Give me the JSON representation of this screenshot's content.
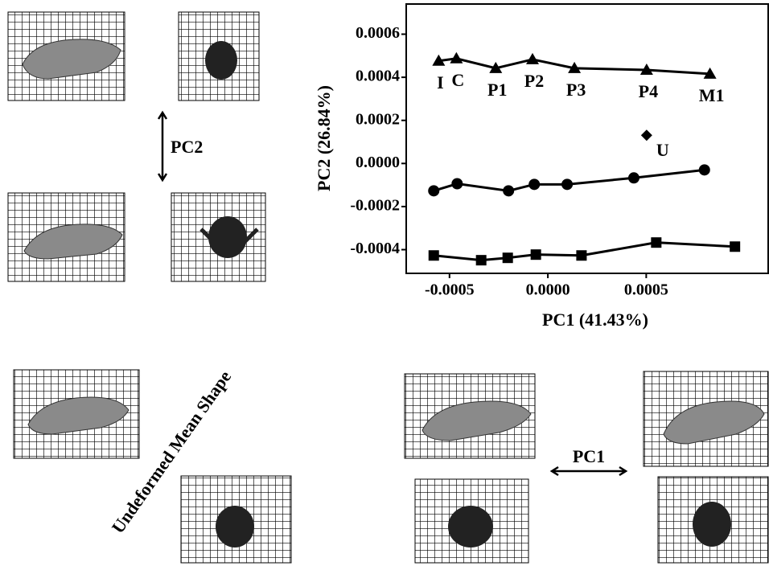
{
  "figure": {
    "labels": [
      "PC2",
      "PC1",
      "Undeformed Mean Shape"
    ]
  },
  "chart_data": {
    "type": "scatter",
    "xlabel": "PC1 (41.43%)",
    "ylabel": "PC2 (26.84%)",
    "xlim": [
      -0.00072,
      0.00112
    ],
    "ylim": [
      -0.00051,
      0.00074
    ],
    "xticks": [
      -0.0005,
      {
        "value": 0,
        "label": "0.0000"
      },
      0.0005
    ],
    "yticks": [
      {
        "value": -0.0004,
        "label": "-0.0004"
      },
      {
        "value": -0.0002,
        "label": "-0.0002"
      },
      {
        "value": 0,
        "label": "0.0000"
      },
      0.0002,
      0.0004,
      0.0006
    ],
    "series": [
      {
        "marker": "triangle",
        "color": "#000000",
        "lines": true,
        "x": [
          -0.000555,
          -0.000465,
          -0.000265,
          -7.8e-05,
          0.000135,
          0.000502,
          0.000824
        ],
        "values": [
          0.000476,
          0.000487,
          0.000442,
          0.000483,
          0.000442,
          0.000434,
          0.000416
        ],
        "point_labels": [
          "I",
          "C",
          "P1",
          "P2",
          "P3",
          "P4",
          "M1"
        ]
      },
      {
        "marker": "diamond",
        "color": "#000000",
        "lines": false,
        "x": [
          0.000502
        ],
        "values": [
          0.000131
        ],
        "point_labels": [
          "U"
        ]
      },
      {
        "marker": "circle",
        "color": "#000000",
        "lines": true,
        "x": [
          -0.00058,
          -0.000461,
          -0.0002,
          -6.9e-05,
          9.8e-05,
          0.000437,
          0.000796
        ],
        "values": [
          -0.000127,
          -9.4e-05,
          -0.000127,
          -9.7e-05,
          -9.7e-05,
          -6.7e-05,
          -3e-05
        ]
      },
      {
        "marker": "square",
        "color": "#000000",
        "lines": true,
        "x": [
          -0.00058,
          -0.000339,
          -0.000204,
          -6.1e-05,
          0.000171,
          0.000551,
          0.000951
        ],
        "values": [
          -0.000427,
          -0.000449,
          -0.000438,
          -0.000423,
          -0.000427,
          -0.000367,
          -0.000386
        ]
      }
    ]
  }
}
